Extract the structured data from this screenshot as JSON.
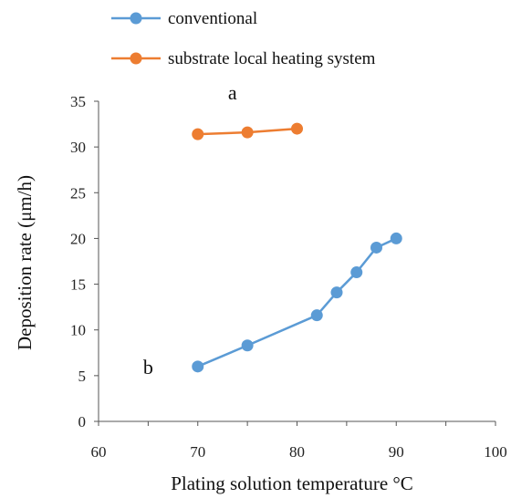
{
  "chart_data": {
    "type": "line",
    "xlabel": "Plating solution temperature °C",
    "ylabel": "Deposition rate (μm/h)",
    "xlim": [
      60,
      100
    ],
    "ylim": [
      0,
      35
    ],
    "xticks": [
      60,
      70,
      80,
      90,
      100
    ],
    "yticks": [
      0,
      5,
      10,
      15,
      20,
      25,
      30,
      35
    ],
    "grid": false,
    "legend_position": "top-left, above plot",
    "series": [
      {
        "name": "conventional",
        "color": "#5b9bd5",
        "x": [
          70,
          75,
          82,
          84,
          86,
          88,
          90
        ],
        "y": [
          6.0,
          8.3,
          11.6,
          14.1,
          16.3,
          19.0,
          20.0
        ]
      },
      {
        "name": "substrate local heating system",
        "color": "#ed7d31",
        "x": [
          70,
          75,
          80
        ],
        "y": [
          31.4,
          31.6,
          32.0
        ]
      }
    ],
    "annotations": [
      {
        "text": "a",
        "x": 73.5,
        "y": 36
      },
      {
        "text": "b",
        "x": 65,
        "y": 6
      }
    ]
  }
}
